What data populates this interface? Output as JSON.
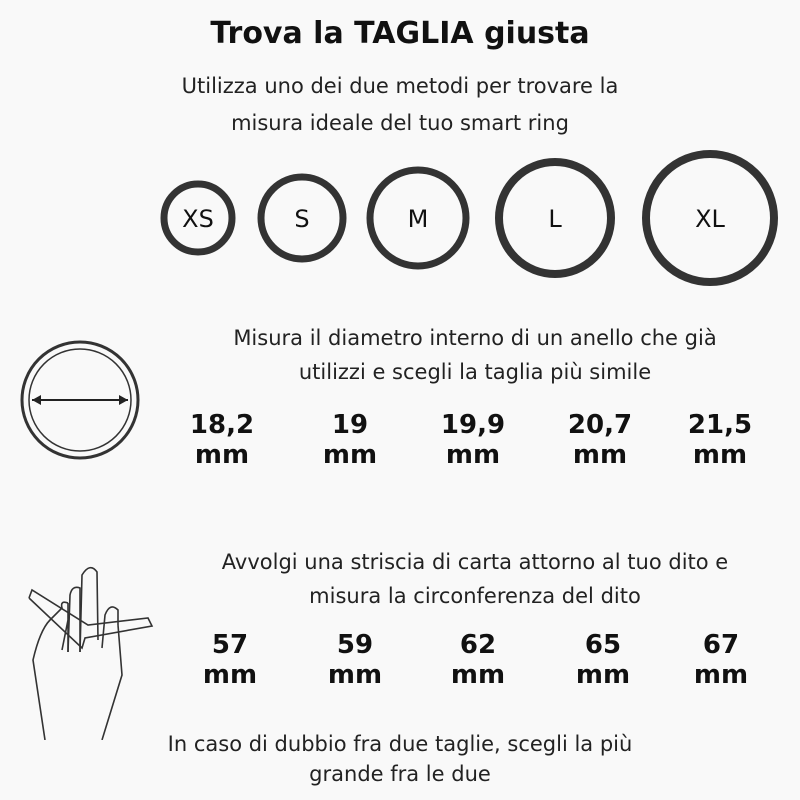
{
  "title": "Trova la TAGLIA giusta",
  "subtitle": [
    "Utilizza uno dei due metodi per trovare la",
    "misura ideale del tuo smart ring"
  ],
  "sizes": [
    "XS",
    "S",
    "M",
    "L",
    "XL"
  ],
  "method_diameter": {
    "text": [
      "Misura il diametro interno di un anello che già",
      "utilizzi e scegli la taglia più simile"
    ],
    "values": [
      "18,2",
      "19",
      "19,9",
      "20,7",
      "21,5"
    ],
    "unit": "mm",
    "icon": "ring-diameter-icon"
  },
  "method_circumference": {
    "text": [
      "Avvolgi una striscia di carta attorno al tuo dito e",
      "misura la circonferenza del dito"
    ],
    "values": [
      "57",
      "59",
      "62",
      "65",
      "67"
    ],
    "unit": "mm",
    "icon": "hand-paper-strip-icon"
  },
  "note": [
    "In caso di dubbio fra due taglie, scegli la più",
    "grande fra le due"
  ],
  "colors": {
    "ring": "#333333",
    "text": "#111111",
    "background": "#f9f9f9"
  }
}
